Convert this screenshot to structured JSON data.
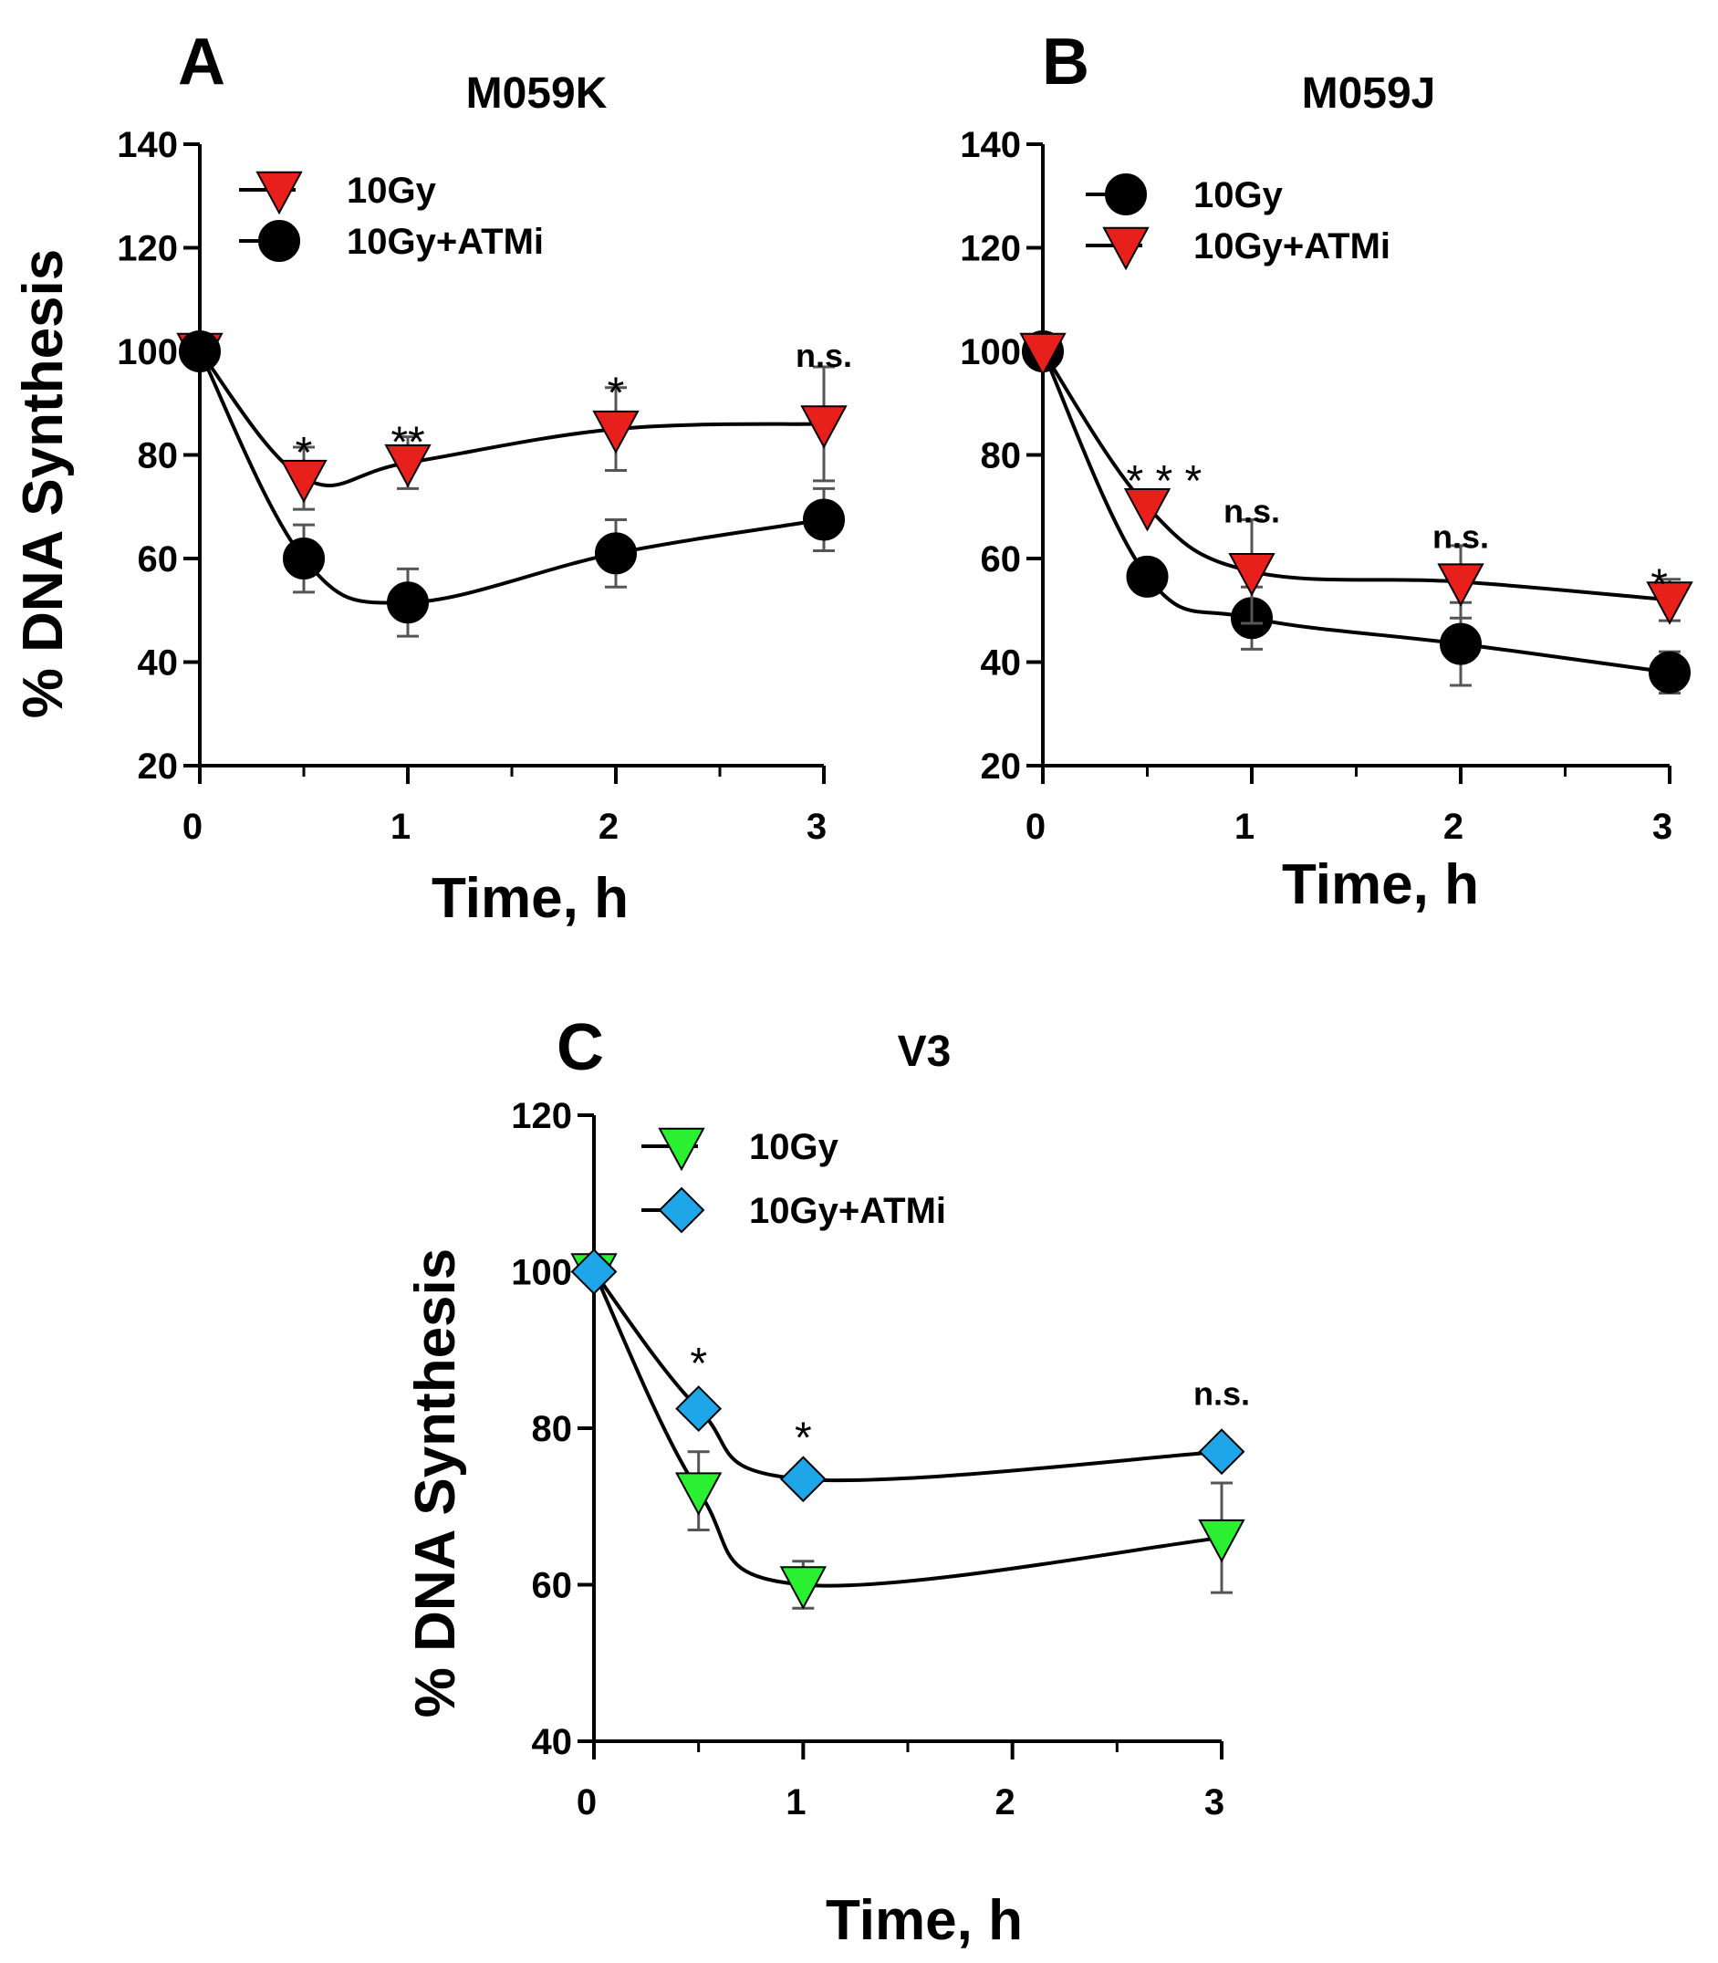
{
  "chart_data": [
    {
      "type": "line",
      "panel": "A",
      "title": "M059K",
      "xlabel": "Time, h",
      "ylabel": "% DNA Synthesis",
      "xlim": [
        0,
        3
      ],
      "ylim": [
        20,
        140
      ],
      "x_ticks": [
        0,
        1,
        2,
        3
      ],
      "y_ticks": [
        20,
        40,
        60,
        80,
        100,
        120,
        140
      ],
      "x_minor_ticks": [
        0.5,
        1.5,
        2.5
      ],
      "legend_position": "top-left",
      "series": [
        {
          "name": "10Gy",
          "marker": "triangle-down",
          "color": "#e8201c",
          "x": [
            0,
            0.5,
            1,
            2,
            3
          ],
          "values": [
            100,
            75.5,
            78.5,
            85,
            86
          ],
          "errors": [
            0,
            6,
            5,
            8,
            11
          ]
        },
        {
          "name": "10Gy+ATMi",
          "marker": "circle",
          "color": "#000000",
          "x": [
            0,
            0.5,
            1,
            2,
            3
          ],
          "values": [
            100,
            60,
            51.5,
            61,
            67.5
          ],
          "errors": [
            0,
            6.5,
            6.5,
            6.5,
            6
          ]
        }
      ],
      "annotations": [
        {
          "x": 0.5,
          "y": 81.5,
          "text": "*"
        },
        {
          "x": 1,
          "y": 83.5,
          "text": "**"
        },
        {
          "x": 2,
          "y": 93,
          "text": "*"
        },
        {
          "x": 3,
          "y": 97,
          "text": "n.s."
        }
      ]
    },
    {
      "type": "line",
      "panel": "B",
      "title": "M059J",
      "xlabel": "Time, h",
      "ylabel": "",
      "xlim": [
        0,
        3
      ],
      "ylim": [
        20,
        140
      ],
      "x_ticks": [
        0,
        1,
        2,
        3
      ],
      "y_ticks": [
        20,
        40,
        60,
        80,
        100,
        120,
        140
      ],
      "x_minor_ticks": [
        0.5,
        1.5,
        2.5
      ],
      "legend_position": "top-left",
      "series": [
        {
          "name": "10Gy",
          "marker": "circle",
          "color": "#000000",
          "x": [
            0,
            0.5,
            1,
            2,
            3
          ],
          "values": [
            100,
            56.5,
            48.5,
            43.5,
            38
          ],
          "errors": [
            0,
            0,
            6,
            8,
            4
          ]
        },
        {
          "name": "10Gy+ATMi",
          "marker": "triangle-down",
          "color": "#e8201c",
          "x": [
            0,
            0.5,
            1,
            2,
            3
          ],
          "values": [
            100,
            70,
            57.5,
            55.5,
            52
          ],
          "errors": [
            0,
            0,
            10,
            7,
            4
          ]
        }
      ],
      "annotations": [
        {
          "x": 0.58,
          "y": 76,
          "text": "* * *"
        },
        {
          "x": 1,
          "y": 67,
          "text": "n.s."
        },
        {
          "x": 2,
          "y": 62,
          "text": "n.s."
        },
        {
          "x": 2.95,
          "y": 56,
          "text": "*"
        }
      ]
    },
    {
      "type": "line",
      "panel": "C",
      "title": "V3",
      "xlabel": "Time, h",
      "ylabel": "% DNA Synthesis",
      "xlim": [
        0,
        3
      ],
      "ylim": [
        40,
        120
      ],
      "x_ticks": [
        0,
        1,
        2,
        3
      ],
      "y_ticks": [
        40,
        60,
        80,
        100,
        120
      ],
      "x_minor_ticks": [
        0.5,
        1.5,
        2.5
      ],
      "legend_position": "top-left",
      "series": [
        {
          "name": "10Gy",
          "marker": "triangle-down",
          "color": "#2bf032",
          "x": [
            0,
            0.5,
            1,
            3
          ],
          "values": [
            100,
            72,
            60,
            66
          ],
          "errors": [
            0,
            5,
            3,
            7
          ]
        },
        {
          "name": "10Gy+ATMi",
          "marker": "diamond",
          "color": "#1ea6e8",
          "x": [
            0,
            0.5,
            1,
            3
          ],
          "values": [
            100,
            82.5,
            73.5,
            77
          ],
          "errors": [
            0,
            0,
            0,
            0
          ]
        }
      ],
      "annotations": [
        {
          "x": 0.5,
          "y": 89,
          "text": "*"
        },
        {
          "x": 1,
          "y": 79.5,
          "text": "*"
        },
        {
          "x": 3,
          "y": 83,
          "text": "n.s."
        }
      ]
    }
  ]
}
